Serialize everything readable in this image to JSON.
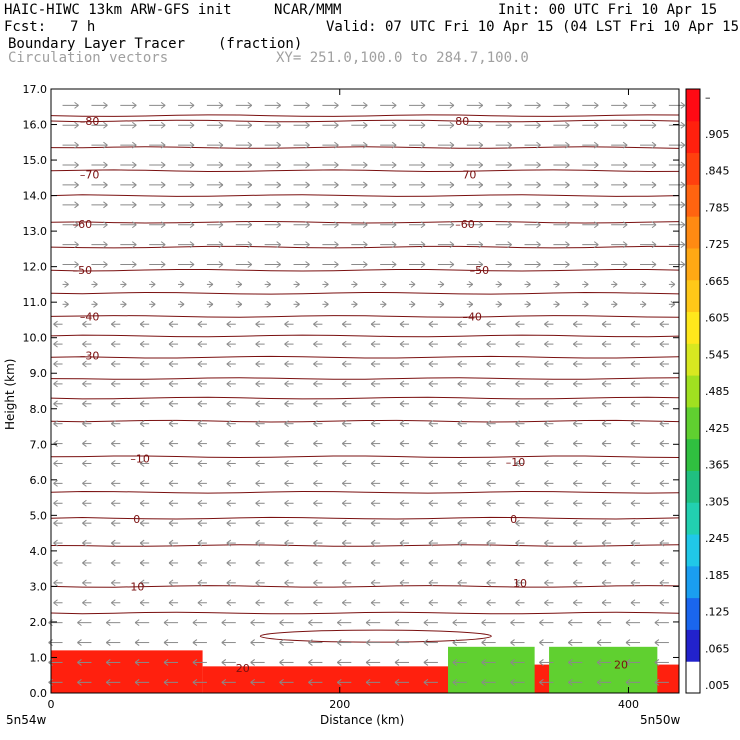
{
  "header": {
    "model": "HAIC-HIWC 13km ARW-GFS init",
    "org": "NCAR/MMM",
    "init": "Init: 00 UTC Fri 10 Apr 15",
    "fcst_label": "Fcst:",
    "fcst_value": "7 h",
    "valid": "Valid: 07 UTC Fri 10 Apr 15 (04 LST Fri 10 Apr 15)",
    "field": "Boundary Layer Tracer",
    "field_units": "(fraction)",
    "vectors": "Circulation vectors",
    "xy": "XY= 251.0,100.0 to 284.7,100.0"
  },
  "colors": {
    "contour": "#7a1010",
    "vector": "#8a8a8a",
    "bar": [
      "#ffffff",
      "#2222cc",
      "#1a66ee",
      "#1a9ef0",
      "#20c8e8",
      "#22d0b0",
      "#20c080",
      "#30c040",
      "#60d030",
      "#a0e020",
      "#d8e820",
      "#ffe81c",
      "#ffc818",
      "#ffa814",
      "#ff8a12",
      "#ff6410",
      "#ff400e",
      "#ff200e",
      "#ff0a14"
    ]
  },
  "chart_data": {
    "type": "heatmap",
    "title": "Boundary Layer Tracer",
    "units": "(fraction)",
    "xlabel": "Distance (km)",
    "ylabel": "Height (km)",
    "xlim": [
      0,
      435
    ],
    "ylim": [
      0,
      17
    ],
    "x_ticks": [
      "0",
      "200",
      "400"
    ],
    "y_ticks": [
      "0.0",
      "1.0",
      "2.0",
      "3.0",
      "4.0",
      "5.0",
      "6.0",
      "7.0",
      "8.0",
      "9.0",
      "10.0",
      "11.0",
      "12.0",
      "13.0",
      "14.0",
      "15.0",
      "16.0",
      "17.0"
    ],
    "endpoints": [
      "5n54w",
      "5n50w"
    ],
    "colorbar_labels": [
      ".005",
      ".065",
      ".125",
      ".185",
      ".245",
      ".305",
      ".365",
      ".425",
      ".485",
      ".545",
      ".605",
      ".665",
      ".725",
      ".785",
      ".845",
      ".905",
      "–"
    ],
    "contour_labels": [
      {
        "text": "–80",
        "x": 20,
        "y": 16.1
      },
      {
        "text": "80",
        "x": 280,
        "y": 16.1
      },
      {
        "text": "–70",
        "x": 20,
        "y": 14.6
      },
      {
        "text": "70",
        "x": 285,
        "y": 14.6
      },
      {
        "text": "–60",
        "x": 15,
        "y": 13.2
      },
      {
        "text": "–60",
        "x": 280,
        "y": 13.2
      },
      {
        "text": "–50",
        "x": 15,
        "y": 11.9
      },
      {
        "text": "–50",
        "x": 290,
        "y": 11.9
      },
      {
        "text": "–40",
        "x": 20,
        "y": 10.6
      },
      {
        "text": "–40",
        "x": 285,
        "y": 10.6
      },
      {
        "text": "–30",
        "x": 20,
        "y": 9.5
      },
      {
        "text": "–10",
        "x": 55,
        "y": 6.6
      },
      {
        "text": "–10",
        "x": 315,
        "y": 6.5
      },
      {
        "text": "0",
        "x": 57,
        "y": 4.9
      },
      {
        "text": "0",
        "x": 318,
        "y": 4.9
      },
      {
        "text": "10",
        "x": 55,
        "y": 3.0
      },
      {
        "text": "10",
        "x": 320,
        "y": 3.1
      },
      {
        "text": "20",
        "x": 128,
        "y": 0.7
      },
      {
        "text": "20",
        "x": 390,
        "y": 0.8
      }
    ],
    "isotherm_heights": [
      16.25,
      16.1,
      15.35,
      14.7,
      14.0,
      13.25,
      12.55,
      11.9,
      11.25,
      10.6,
      10.05,
      9.45,
      8.85,
      8.3,
      7.65,
      6.65,
      5.65,
      4.92,
      4.15,
      3.0,
      2.25
    ],
    "tracer_layer": [
      {
        "x": [
          0,
          105
        ],
        "top": 1.2,
        "value": 0.95
      },
      {
        "x": [
          105,
          275
        ],
        "top": 0.75,
        "value": 0.95
      },
      {
        "x": [
          275,
          435
        ],
        "top": 0.8,
        "value": 0.95
      },
      {
        "x": [
          275,
          335
        ],
        "top": 1.3,
        "value": 0.45
      },
      {
        "x": [
          345,
          420
        ],
        "top": 1.3,
        "value": 0.45
      }
    ]
  }
}
